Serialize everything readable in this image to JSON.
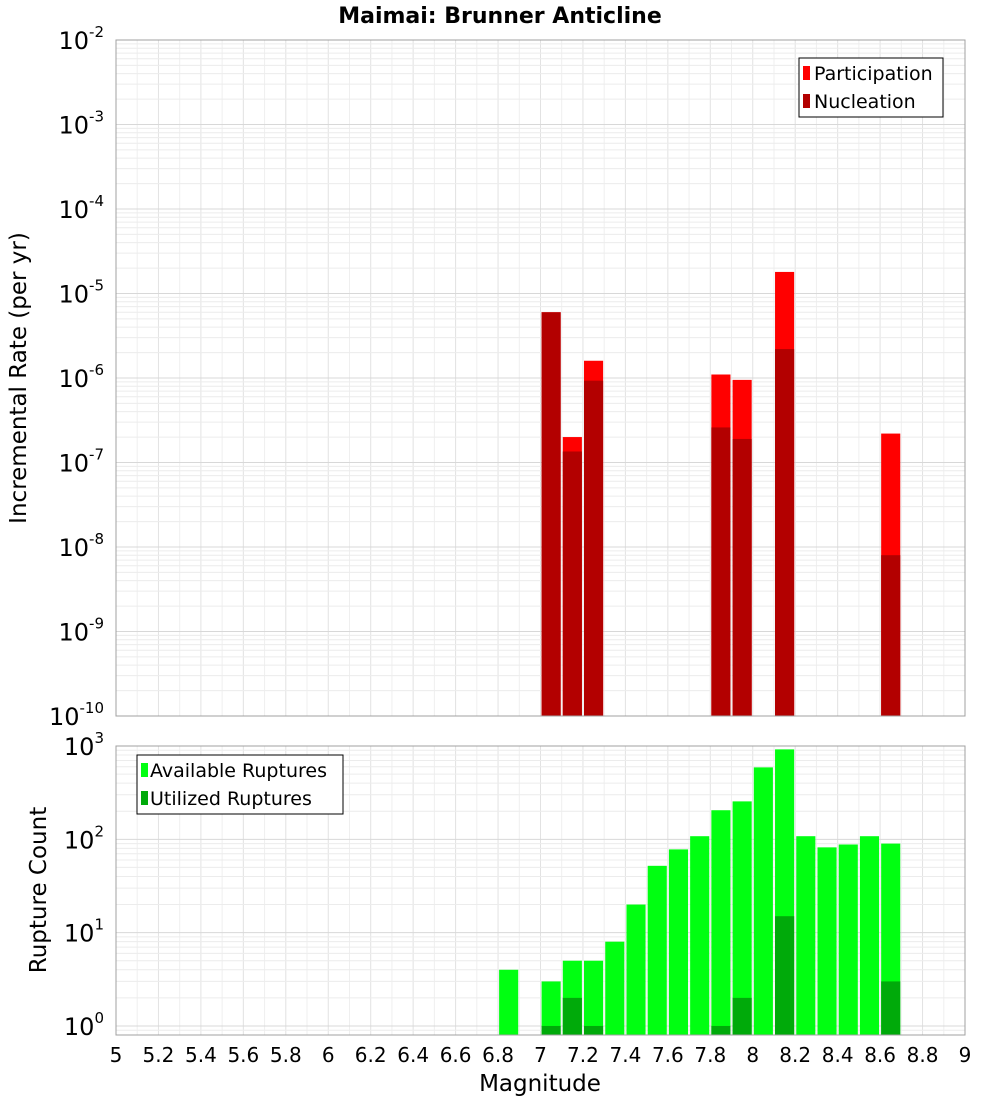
{
  "chart_data": [
    {
      "type": "bar",
      "title": "Maimai: Brunner Anticline",
      "ylabel": "Incremental Rate (per yr)",
      "xlabel": "",
      "xlim": [
        5,
        9
      ],
      "ylim": [
        1e-10,
        0.01
      ],
      "yscale": "log",
      "grid": true,
      "legend_position": "top-right",
      "bar_width": 0.09,
      "series": [
        {
          "name": "Participation",
          "color": "#ff0000",
          "x": [
            7.05,
            7.15,
            7.25,
            7.85,
            7.95,
            8.15,
            8.65
          ],
          "values": [
            6e-06,
            2e-07,
            1.6e-06,
            1.1e-06,
            9.5e-07,
            1.8e-05,
            2.2e-07
          ]
        },
        {
          "name": "Nucleation",
          "color": "#b30000",
          "x": [
            7.05,
            7.15,
            7.25,
            7.85,
            7.95,
            8.15,
            8.65
          ],
          "values": [
            6e-06,
            1.35e-07,
            9.3e-07,
            2.6e-07,
            1.9e-07,
            2.2e-06,
            8e-09
          ]
        }
      ]
    },
    {
      "type": "bar",
      "title": "",
      "ylabel": "Rupture Count",
      "xlabel": "Magnitude",
      "xlim": [
        5,
        9
      ],
      "ylim": [
        0.8,
        1000
      ],
      "yscale": "log",
      "grid": true,
      "legend_position": "top-left",
      "bar_width": 0.09,
      "x_ticks": [
        "5",
        "5.2",
        "5.4",
        "5.6",
        "5.8",
        "6",
        "6.2",
        "6.4",
        "6.6",
        "6.8",
        "7",
        "7.2",
        "7.4",
        "7.6",
        "7.8",
        "8",
        "8.2",
        "8.4",
        "8.6",
        "8.8",
        "9"
      ],
      "series": [
        {
          "name": "Available Ruptures",
          "color": "#00ff11",
          "x": [
            6.85,
            7.05,
            7.15,
            7.25,
            7.35,
            7.45,
            7.55,
            7.65,
            7.75,
            7.85,
            7.95,
            8.05,
            8.15,
            8.25,
            8.35,
            8.45,
            8.55,
            8.65
          ],
          "values": [
            4,
            3,
            5,
            5,
            8,
            20,
            52,
            78,
            108,
            205,
            255,
            590,
            920,
            108,
            82,
            88,
            108,
            90
          ]
        },
        {
          "name": "Utilized Ruptures",
          "color": "#00aa0a",
          "x": [
            7.05,
            7.15,
            7.25,
            7.85,
            7.95,
            8.15,
            8.65
          ],
          "values": [
            1,
            2,
            1,
            1,
            2,
            15,
            3
          ]
        }
      ]
    }
  ]
}
